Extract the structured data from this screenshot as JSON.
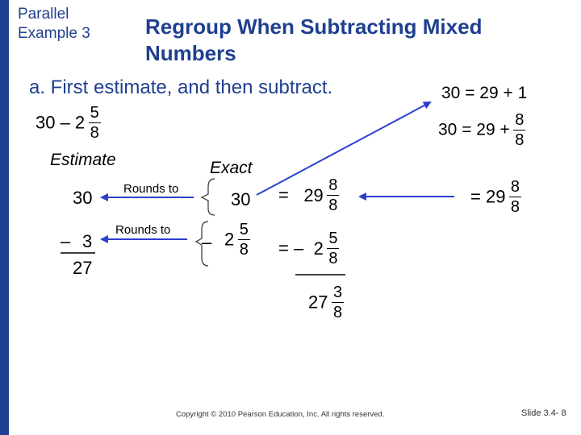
{
  "header": {
    "tag_line1": "Parallel",
    "tag_line2": "Example 3",
    "title_line1": "Regroup When Subtracting Mixed",
    "title_line2": "Numbers"
  },
  "instruction": "a.  First estimate, and then subtract.",
  "problem": {
    "whole": "30 – 2",
    "num": "5",
    "den": "8"
  },
  "regroup": {
    "line1": "30 = 29 + 1",
    "line2_prefix": "30 = 29 +",
    "line2_num": "8",
    "line2_den": "8"
  },
  "estimate": {
    "heading": "Estimate",
    "top": "30",
    "minus": "–",
    "sub": "3",
    "result": "27",
    "rounds_label_1": "Rounds to",
    "rounds_label_2": "Rounds to"
  },
  "exact": {
    "heading": "Exact",
    "top": "30",
    "minus": "–",
    "sub_whole": "2",
    "sub_num": "5",
    "sub_den": "8"
  },
  "work": {
    "eq1": "=",
    "eq1_whole": "29",
    "eq1_num": "8",
    "eq1_den": "8",
    "eq2": "= –",
    "eq2_whole": "2",
    "eq2_num": "5",
    "eq2_den": "8",
    "res_whole": "27",
    "res_num": "3",
    "res_den": "8",
    "right_eq": "= 29",
    "right_num": "8",
    "right_den": "8"
  },
  "footer": {
    "copyright": "Copyright © 2010 Pearson Education, Inc.  All rights reserved.",
    "slide": "Slide 3.4- 8"
  },
  "colors": {
    "accent": "#1f3f8f",
    "arrow": "#2b3fcf"
  }
}
